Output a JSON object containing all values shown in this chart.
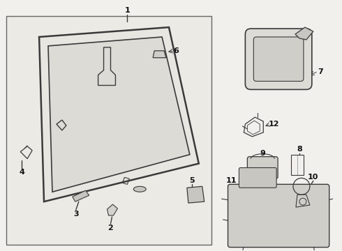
{
  "bg_color": "#f2f0ed",
  "box_bg": "#eceae5",
  "line_color": "#3a3a3a",
  "text_color": "#111111",
  "border_color": "#777777",
  "part_fill": "#e0ddd8",
  "grid_color": "#aaaaaa"
}
